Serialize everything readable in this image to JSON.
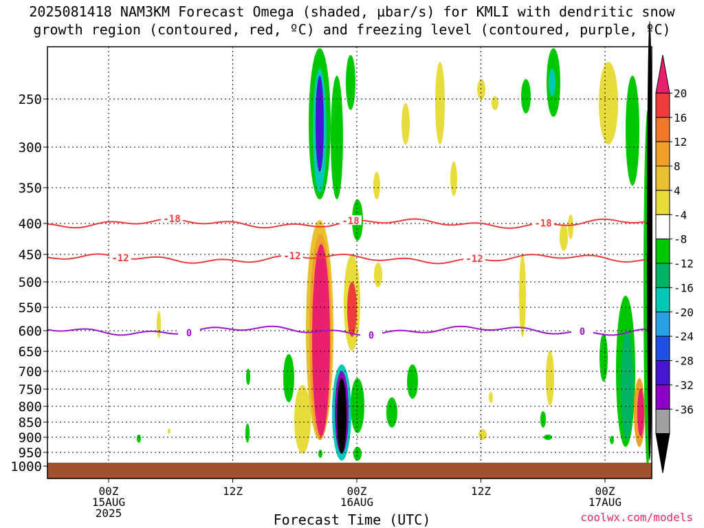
{
  "title": {
    "line1": "2025081418 NAM3KM Forecast Omega (shaded, µbar/s) for KMLI with dendritic snow",
    "line2": "growth region (contoured, red, ºC) and freezing level (contoured, purple, ºC)"
  },
  "credit": "coolwx.com/models",
  "chart_data": {
    "type": "contour",
    "x_axis": {
      "label": "Forecast Time (UTC)",
      "ticks": [
        {
          "hour": 6,
          "label": "00Z",
          "sub": [
            "15AUG",
            "2025"
          ]
        },
        {
          "hour": 18,
          "label": "12Z",
          "sub": []
        },
        {
          "hour": 30,
          "label": "00Z",
          "sub": [
            "16AUG"
          ]
        },
        {
          "hour": 42,
          "label": "12Z",
          "sub": []
        },
        {
          "hour": 54,
          "label": "00Z",
          "sub": [
            "17AUG"
          ]
        }
      ],
      "range_hours": [
        0,
        60
      ]
    },
    "y_axis": {
      "label": "",
      "scale": "pressure (hPa), inverted",
      "ticks": [
        "250",
        "300",
        "350",
        "400",
        "450",
        "500",
        "550",
        "600",
        "650",
        "700",
        "750",
        "800",
        "850",
        "900",
        "950",
        "1000"
      ],
      "range": [
        200,
        1020
      ]
    },
    "colorbar": {
      "labels": [
        "20",
        "16",
        "12",
        "8",
        "4",
        "-4",
        "-8",
        "-12",
        "-16",
        "-20",
        "-24",
        "-28",
        "-32",
        "-36"
      ],
      "colors": [
        "#e8206e",
        "#f03c3c",
        "#f07828",
        "#f0a028",
        "#e8c030",
        "#e8dc3c",
        "#ffffff",
        "#00c800",
        "#00b464",
        "#00c8b4",
        "#28a0e6",
        "#1e50e6",
        "#4616d2",
        "#8c00c8",
        "#a0a0a0",
        "#000000"
      ]
    },
    "temperature_contours": [
      {
        "value": "-18",
        "color": "#e83c3c",
        "pressure": 400
      },
      {
        "value": "-12",
        "color": "#e83c3c",
        "pressure": 458
      },
      {
        "value": "0",
        "color": "#9a14c8",
        "pressure": 600
      }
    ],
    "ground_color": "#a0522d",
    "grid": true
  }
}
